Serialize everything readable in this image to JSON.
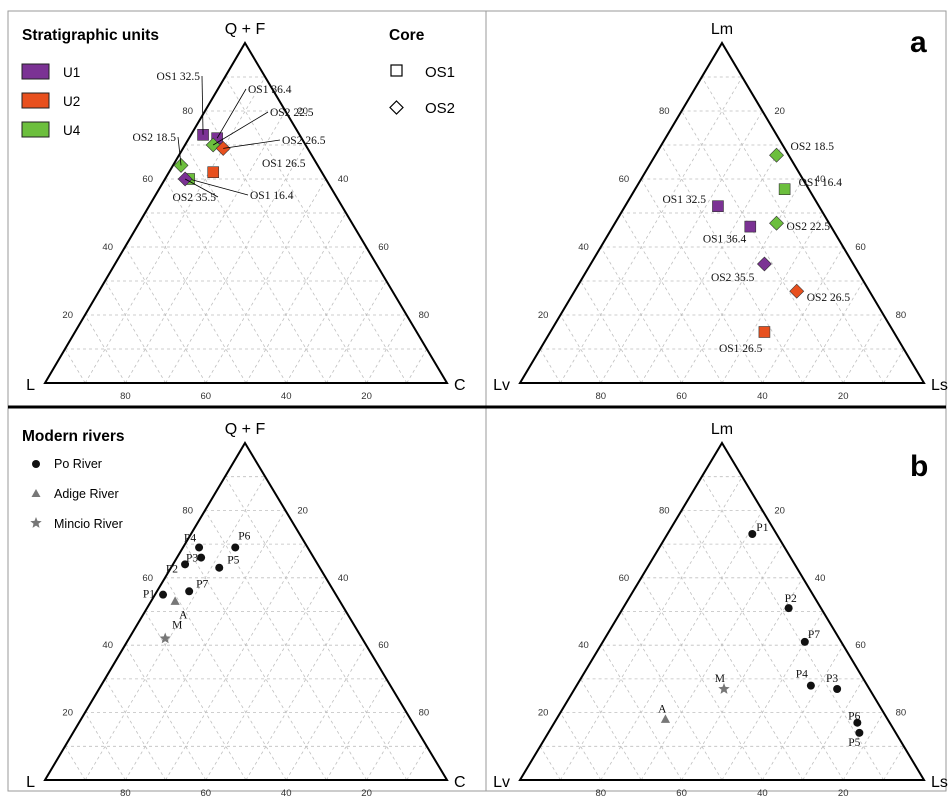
{
  "colors": {
    "U1": "#7b3294",
    "U2": "#e8501e",
    "U4": "#6cbf3d",
    "po": "#111111",
    "adige": "#777777",
    "mincio": "#777777",
    "frame": "#000000",
    "grid": "#bfbfbf"
  },
  "panels": {
    "a": {
      "letter": "a",
      "legend_title": "Stratigraphic units",
      "core_title": "Core",
      "units": [
        {
          "label": "U1",
          "color_key": "U1"
        },
        {
          "label": "U2",
          "color_key": "U2"
        },
        {
          "label": "U4",
          "color_key": "U4"
        }
      ],
      "cores": [
        {
          "label": "OS1",
          "shape": "square"
        },
        {
          "label": "OS2",
          "shape": "diamond"
        }
      ]
    },
    "b": {
      "letter": "b",
      "legend_title": "Modern rivers",
      "rivers": [
        {
          "label": "Po River",
          "shape": "circle",
          "color_key": "po"
        },
        {
          "label": "Adige River",
          "shape": "triangle",
          "color_key": "adige"
        },
        {
          "label": "Mincio River",
          "shape": "star",
          "color_key": "mincio"
        }
      ]
    }
  },
  "chart_data": [
    {
      "type": "scatter",
      "subtype": "ternary",
      "panel": "a",
      "apex_labels": {
        "top": "Q + F",
        "left": "L",
        "right": "C"
      },
      "ticks": [
        "20",
        "40",
        "60",
        "80"
      ],
      "grid": true,
      "points": [
        {
          "label": "OS1 32.5",
          "unit": "U1",
          "core": "OS1",
          "top": 73,
          "right": 3
        },
        {
          "label": "OS1 36.4",
          "unit": "U1",
          "core": "OS1",
          "top": 72,
          "right": 7
        },
        {
          "label": "OS2 22.5",
          "unit": "U4",
          "core": "OS2",
          "top": 70,
          "right": 7
        },
        {
          "label": "OS2 26.5",
          "unit": "U2",
          "core": "OS2",
          "top": 69,
          "right": 10
        },
        {
          "label": "OS2 18.5",
          "unit": "U4",
          "core": "OS2",
          "top": 64,
          "right": 2
        },
        {
          "label": "OS1 26.5",
          "unit": "U2",
          "core": "OS1",
          "top": 62,
          "right": 11
        },
        {
          "label": "OS1 16.4",
          "unit": "U4",
          "core": "OS1",
          "top": 60,
          "right": 6
        },
        {
          "label": "OS2 35.5",
          "unit": "U1",
          "core": "OS2",
          "top": 60,
          "right": 5
        }
      ]
    },
    {
      "type": "scatter",
      "subtype": "ternary",
      "panel": "a",
      "apex_labels": {
        "top": "Lm",
        "left": "Lv",
        "right": "Ls"
      },
      "ticks": [
        "20",
        "40",
        "60",
        "80"
      ],
      "grid": true,
      "points": [
        {
          "label": "OS2 18.5",
          "unit": "U4",
          "core": "OS2",
          "top": 67,
          "right": 30
        },
        {
          "label": "OS1 16.4",
          "unit": "U4",
          "core": "OS1",
          "top": 57,
          "right": 37
        },
        {
          "label": "OS1 32.5",
          "unit": "U1",
          "core": "OS1",
          "top": 52,
          "right": 23
        },
        {
          "label": "OS1 36.4",
          "unit": "U1",
          "core": "OS1",
          "top": 46,
          "right": 34
        },
        {
          "label": "OS2 22.5",
          "unit": "U4",
          "core": "OS2",
          "top": 47,
          "right": 40
        },
        {
          "label": "OS2 35.5",
          "unit": "U1",
          "core": "OS2",
          "top": 35,
          "right": 43
        },
        {
          "label": "OS2 26.5",
          "unit": "U2",
          "core": "OS2",
          "top": 27,
          "right": 55
        },
        {
          "label": "OS1 26.5",
          "unit": "U2",
          "core": "OS1",
          "top": 15,
          "right": 53
        }
      ]
    },
    {
      "type": "scatter",
      "subtype": "ternary",
      "panel": "b",
      "apex_labels": {
        "top": "Q + F",
        "left": "L",
        "right": "C"
      },
      "ticks": [
        "20",
        "40",
        "60",
        "80"
      ],
      "grid": true,
      "points": [
        {
          "label": "P4",
          "river": "Po River",
          "top": 69,
          "right": 4
        },
        {
          "label": "P6",
          "river": "Po River",
          "top": 69,
          "right": 13
        },
        {
          "label": "P3",
          "river": "Po River",
          "top": 66,
          "right": 6
        },
        {
          "label": "P2",
          "river": "Po River",
          "top": 64,
          "right": 3
        },
        {
          "label": "P5",
          "river": "Po River",
          "top": 63,
          "right": 12
        },
        {
          "label": "P7",
          "river": "Po River",
          "top": 56,
          "right": 8
        },
        {
          "label": "P1",
          "river": "Po River",
          "top": 55,
          "right": 2
        },
        {
          "label": "A",
          "river": "Adige River",
          "top": 53,
          "right": 6
        },
        {
          "label": "M",
          "river": "Mincio River",
          "top": 42,
          "right": 9
        }
      ]
    },
    {
      "type": "scatter",
      "subtype": "ternary",
      "panel": "b",
      "apex_labels": {
        "top": "Lm",
        "left": "Lv",
        "right": "Ls"
      },
      "ticks": [
        "20",
        "40",
        "60",
        "80"
      ],
      "grid": true,
      "points": [
        {
          "label": "P1",
          "river": "Po River",
          "top": 73,
          "right": 21
        },
        {
          "label": "P2",
          "river": "Po River",
          "top": 51,
          "right": 41
        },
        {
          "label": "P7",
          "river": "Po River",
          "top": 41,
          "right": 50
        },
        {
          "label": "P4",
          "river": "Po River",
          "top": 28,
          "right": 58
        },
        {
          "label": "P3",
          "river": "Po River",
          "top": 27,
          "right": 65
        },
        {
          "label": "P6",
          "river": "Po River",
          "top": 17,
          "right": 75
        },
        {
          "label": "P5",
          "river": "Po River",
          "top": 14,
          "right": 77
        },
        {
          "label": "M",
          "river": "Mincio River",
          "top": 27,
          "right": 37
        },
        {
          "label": "A",
          "river": "Adige River",
          "top": 18,
          "right": 27
        }
      ]
    }
  ]
}
